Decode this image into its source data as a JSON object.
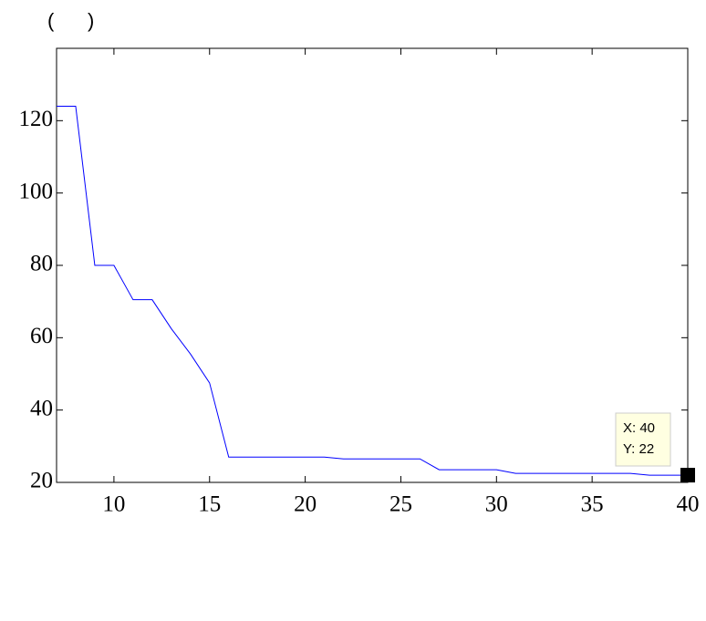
{
  "chart_data": {
    "type": "line",
    "title": "(      )",
    "x": [
      7,
      8,
      9,
      10,
      11,
      12,
      13,
      14,
      15,
      16,
      17,
      18,
      19,
      20,
      21,
      22,
      23,
      24,
      25,
      26,
      27,
      28,
      29,
      30,
      31,
      32,
      33,
      34,
      35,
      36,
      37,
      38,
      39,
      40
    ],
    "series": [
      {
        "color": "#0000ff",
        "values": [
          124,
          124,
          80,
          80,
          70.5,
          70.5,
          62.5,
          55.5,
          47.5,
          27,
          27,
          27,
          27,
          27,
          27,
          26.5,
          26.5,
          26.5,
          26.5,
          26.5,
          23.5,
          23.5,
          23.5,
          23.5,
          22.5,
          22.5,
          22.5,
          22.5,
          22.5,
          22.5,
          22.5,
          22,
          22,
          22
        ]
      }
    ],
    "xlim": [
      7,
      40
    ],
    "ylim": [
      20,
      140
    ],
    "xticks": [
      10,
      15,
      20,
      25,
      30,
      35,
      40
    ],
    "yticks": [
      20,
      40,
      60,
      80,
      100,
      120
    ],
    "annotations": [
      "X: 40",
      "Y: 22"
    ]
  }
}
